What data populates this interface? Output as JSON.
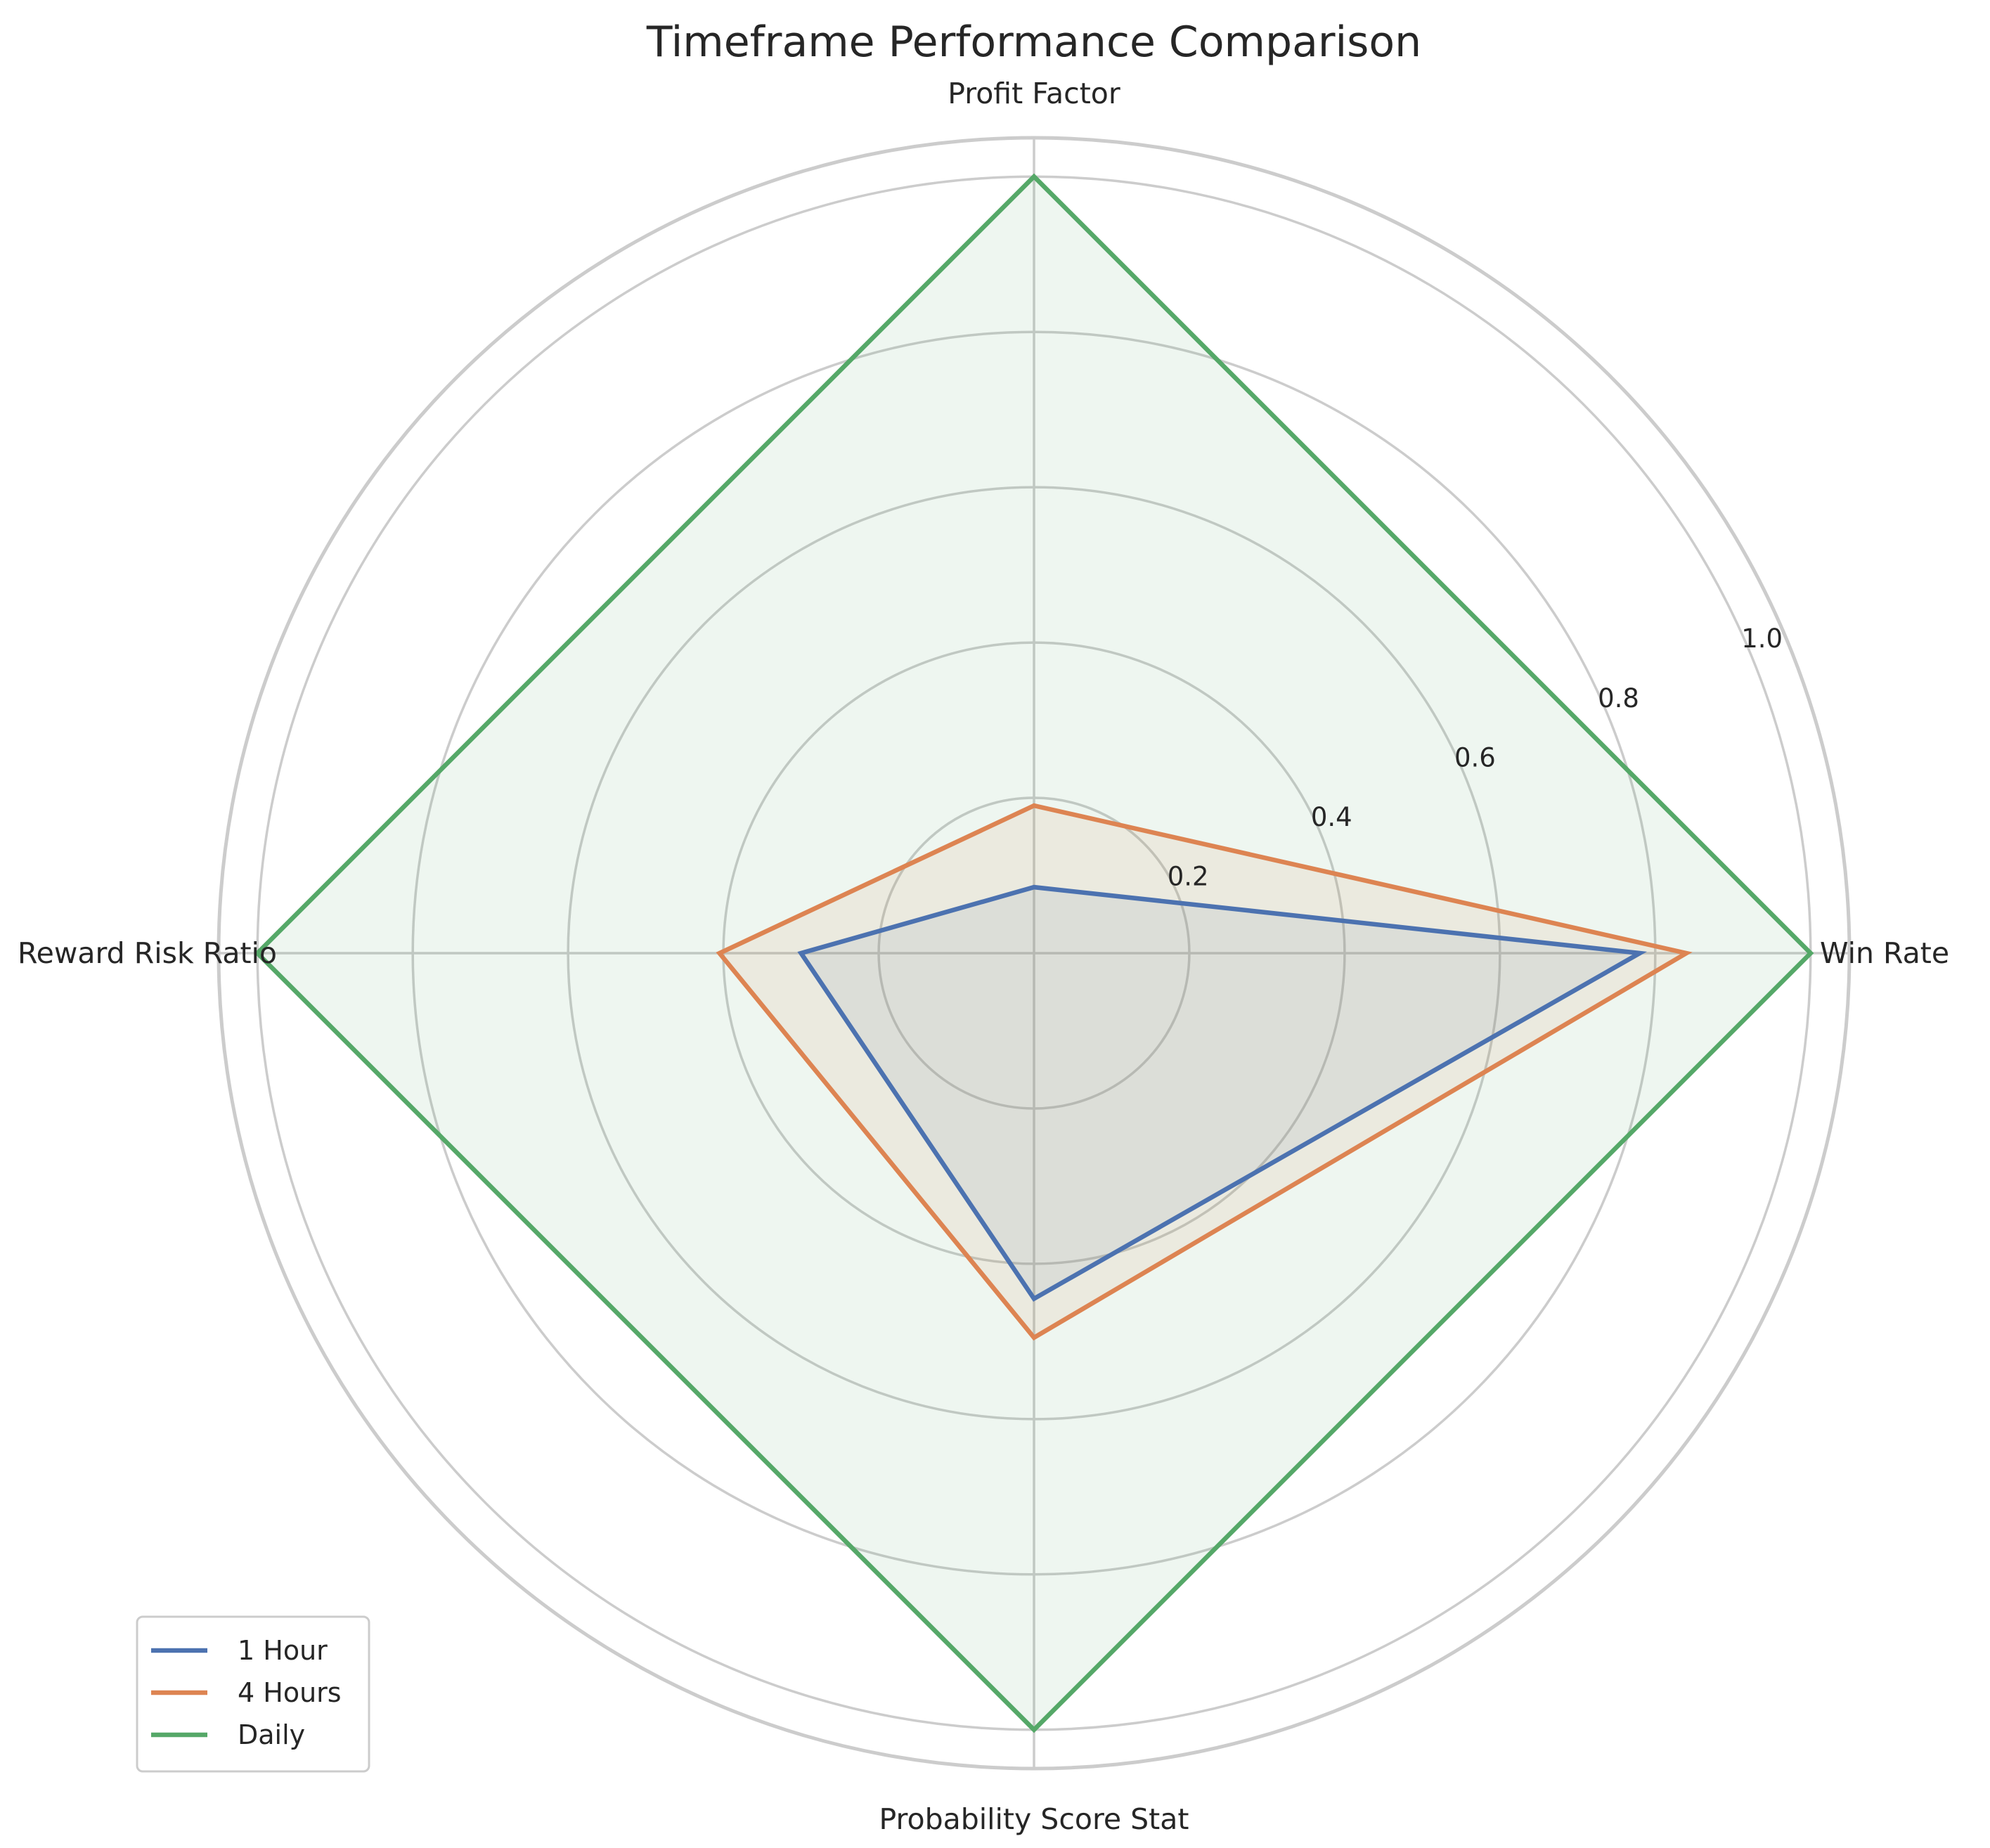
{
  "chart_data": {
    "type": "radar",
    "title": "Timeframe Performance Comparison",
    "categories": [
      "Win Rate",
      "Profit Factor",
      "Reward Risk Ratio",
      "Probability Score Stat"
    ],
    "rlim": [
      0,
      1.05
    ],
    "rticks": [
      0.2,
      0.4,
      0.6,
      0.8,
      1.0
    ],
    "rtick_labels": [
      "0.2",
      "0.4",
      "0.6",
      "0.8",
      "1.0"
    ],
    "grid": true,
    "legend_position": "lower-left",
    "series": [
      {
        "name": "1 Hour",
        "values": [
          0.78,
          0.085,
          0.3,
          0.445
        ],
        "color": "#4c72b0"
      },
      {
        "name": "4 Hours",
        "values": [
          0.84,
          0.19,
          0.405,
          0.495
        ],
        "color": "#dd8452"
      },
      {
        "name": "Daily",
        "values": [
          1.0,
          1.0,
          1.0,
          1.0
        ],
        "color": "#55a868"
      }
    ]
  }
}
